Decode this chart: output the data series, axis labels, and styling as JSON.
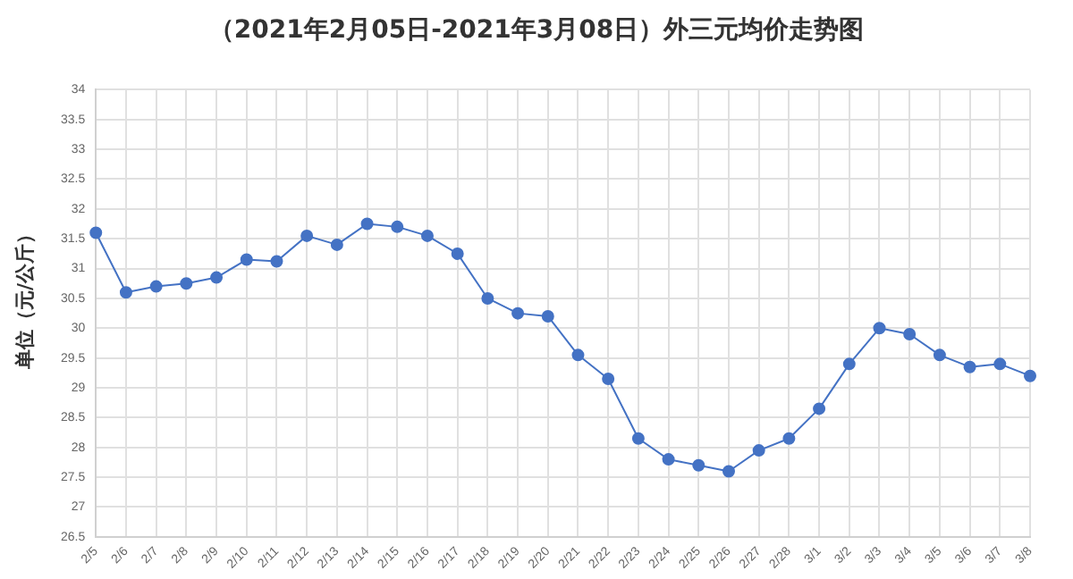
{
  "chart_data": {
    "type": "line",
    "title": "（2021年2月05日-2021年3月08日）外三元均价走势图",
    "ylabel": "单位（元/公斤）",
    "categories": [
      "2/5",
      "2/6",
      "2/7",
      "2/8",
      "2/9",
      "2/10",
      "2/11",
      "2/12",
      "2/13",
      "2/14",
      "2/15",
      "2/16",
      "2/17",
      "2/18",
      "2/19",
      "2/20",
      "2/21",
      "2/22",
      "2/23",
      "2/24",
      "2/25",
      "2/26",
      "2/27",
      "2/28",
      "3/1",
      "3/2",
      "3/3",
      "3/4",
      "3/5",
      "3/6",
      "3/7",
      "3/8"
    ],
    "series": [
      {
        "color": "#4472c4",
        "values": [
          31.6,
          30.6,
          30.7,
          30.75,
          30.85,
          31.15,
          31.12,
          31.55,
          31.4,
          31.75,
          31.7,
          31.55,
          31.25,
          30.5,
          30.25,
          30.2,
          29.55,
          29.15,
          28.15,
          27.8,
          27.7,
          27.6,
          27.95,
          28.15,
          28.65,
          29.4,
          30.0,
          29.9,
          29.55,
          29.35,
          29.4,
          29.2
        ]
      }
    ],
    "ylim": [
      26.5,
      34
    ],
    "yticks": [
      26.5,
      27,
      27.5,
      28,
      28.5,
      29,
      29.5,
      30,
      30.5,
      31,
      31.5,
      32,
      32.5,
      33,
      33.5,
      34
    ],
    "grid": true,
    "legend": false,
    "marker": "circle",
    "line_style": "solid"
  }
}
